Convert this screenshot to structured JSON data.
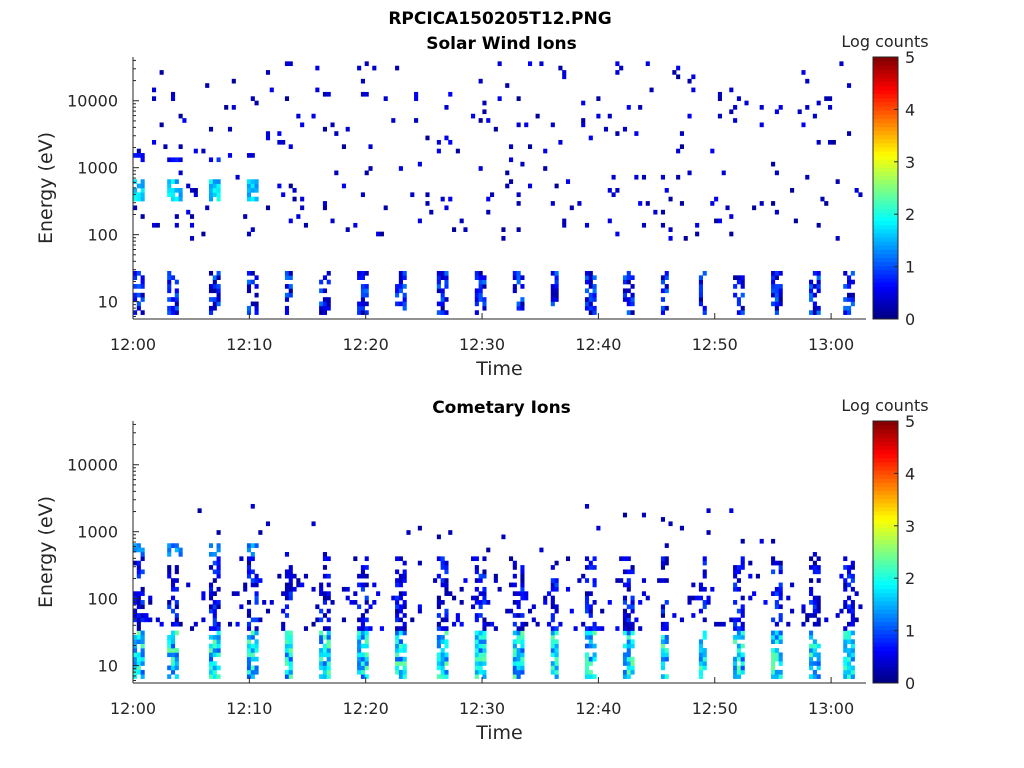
{
  "figure_title": "RPCICA150205T12.PNG",
  "chart_data": [
    {
      "type": "heatmap",
      "title": "Solar Wind Ions",
      "xlabel": "Time",
      "ylabel": "Energy (eV)",
      "y_scale": "log",
      "ylim": [
        5.5,
        45000
      ],
      "xlim": [
        "12:00",
        "13:03"
      ],
      "x_ticks": [
        "12:00",
        "12:10",
        "12:20",
        "12:30",
        "12:40",
        "12:50",
        "13:00"
      ],
      "y_ticks": [
        {
          "value": 10,
          "label": "10"
        },
        {
          "value": 100,
          "label": "100"
        },
        {
          "value": 1000,
          "label": "1000"
        },
        {
          "value": 10000,
          "label": "10000"
        }
      ],
      "colorbar": {
        "label": "Log counts",
        "colormap": "jet",
        "range": [
          0,
          5
        ],
        "ticks": [
          "0",
          "1",
          "2",
          "3",
          "4",
          "5"
        ]
      },
      "grid": false,
      "features": [
        {
          "time_min": [
            0,
            11
          ],
          "energy_ev": [
            300,
            700
          ],
          "log_counts": [
            1.3,
            2.0
          ],
          "note": "solar wind peaks at about 12:00, 12:03, 12:07, 12:10"
        },
        {
          "time_min": [
            0,
            60
          ],
          "energy_ev": [
            6,
            28
          ],
          "log_counts": [
            0.2,
            1.6
          ],
          "note": "periodic low-energy bursts"
        },
        {
          "time_min": [
            0,
            63
          ],
          "energy_ev": [
            80,
            40000
          ],
          "log_counts": [
            0.1,
            0.6
          ],
          "note": "scattered background counts"
        }
      ]
    },
    {
      "type": "heatmap",
      "title": "Cometary Ions",
      "xlabel": "Time",
      "ylabel": "Energy (eV)",
      "y_scale": "log",
      "ylim": [
        5.5,
        45000
      ],
      "xlim": [
        "12:00",
        "13:03"
      ],
      "x_ticks": [
        "12:00",
        "12:10",
        "12:20",
        "12:30",
        "12:40",
        "12:50",
        "13:00"
      ],
      "y_ticks": [
        {
          "value": 10,
          "label": "10"
        },
        {
          "value": 100,
          "label": "100"
        },
        {
          "value": 1000,
          "label": "1000"
        },
        {
          "value": 10000,
          "label": "10000"
        }
      ],
      "colorbar": {
        "label": "Log counts",
        "colormap": "jet",
        "range": [
          0,
          5
        ],
        "ticks": [
          "0",
          "1",
          "2",
          "3",
          "4",
          "5"
        ]
      },
      "grid": false,
      "features": [
        {
          "time_min": [
            0,
            63
          ],
          "energy_ev": [
            6,
            35
          ],
          "log_counts": [
            1.2,
            2.6
          ],
          "note": "periodic low-energy bursts, strongest near 12:10, 12:46, 12:58"
        },
        {
          "time_min": [
            0,
            63
          ],
          "energy_ev": [
            30,
            400
          ],
          "log_counts": [
            0.2,
            1.0
          ],
          "note": "broad cometary ion population"
        },
        {
          "time_min": [
            0,
            11
          ],
          "energy_ev": [
            300,
            700
          ],
          "log_counts": [
            1.0,
            1.6
          ],
          "note": "patches near 12:00, 12:07, 12:10"
        }
      ]
    }
  ]
}
